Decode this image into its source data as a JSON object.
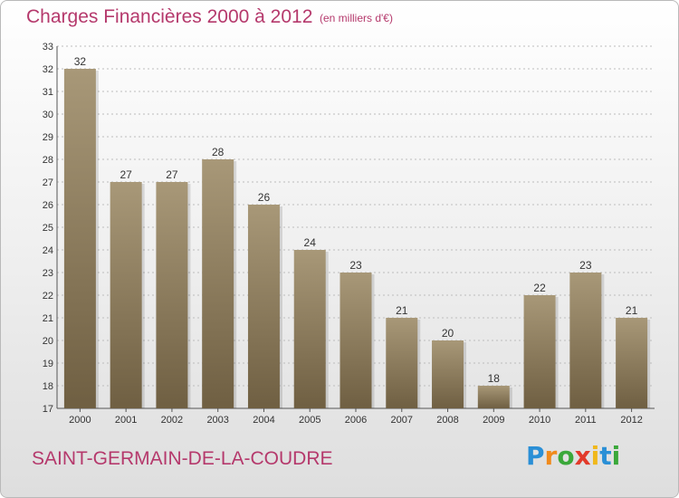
{
  "header": {
    "title": "Charges Financières 2000 à 2012",
    "subtitle": "(en milliers d'€)"
  },
  "footer": {
    "city": "SAINT-GERMAIN-DE-LA-COUDRE",
    "brand": "Proxiti"
  },
  "colors": {
    "bar_top": "#a89878",
    "bar_bottom": "#6f5f42",
    "title": "#b5396c"
  },
  "chart_data": {
    "type": "bar",
    "title": "Charges Financières 2000 à 2012",
    "subtitle": "(en milliers d'€)",
    "categories": [
      "2000",
      "2001",
      "2002",
      "2003",
      "2004",
      "2005",
      "2006",
      "2007",
      "2008",
      "2009",
      "2010",
      "2011",
      "2012"
    ],
    "values": [
      32,
      27,
      27,
      28,
      26,
      24,
      23,
      21,
      20,
      18,
      22,
      23,
      21
    ],
    "ylim": [
      17,
      33
    ],
    "yticks": [
      17,
      18,
      19,
      20,
      21,
      22,
      23,
      24,
      25,
      26,
      27,
      28,
      29,
      30,
      31,
      32,
      33
    ],
    "grid": true,
    "legend": "none"
  }
}
